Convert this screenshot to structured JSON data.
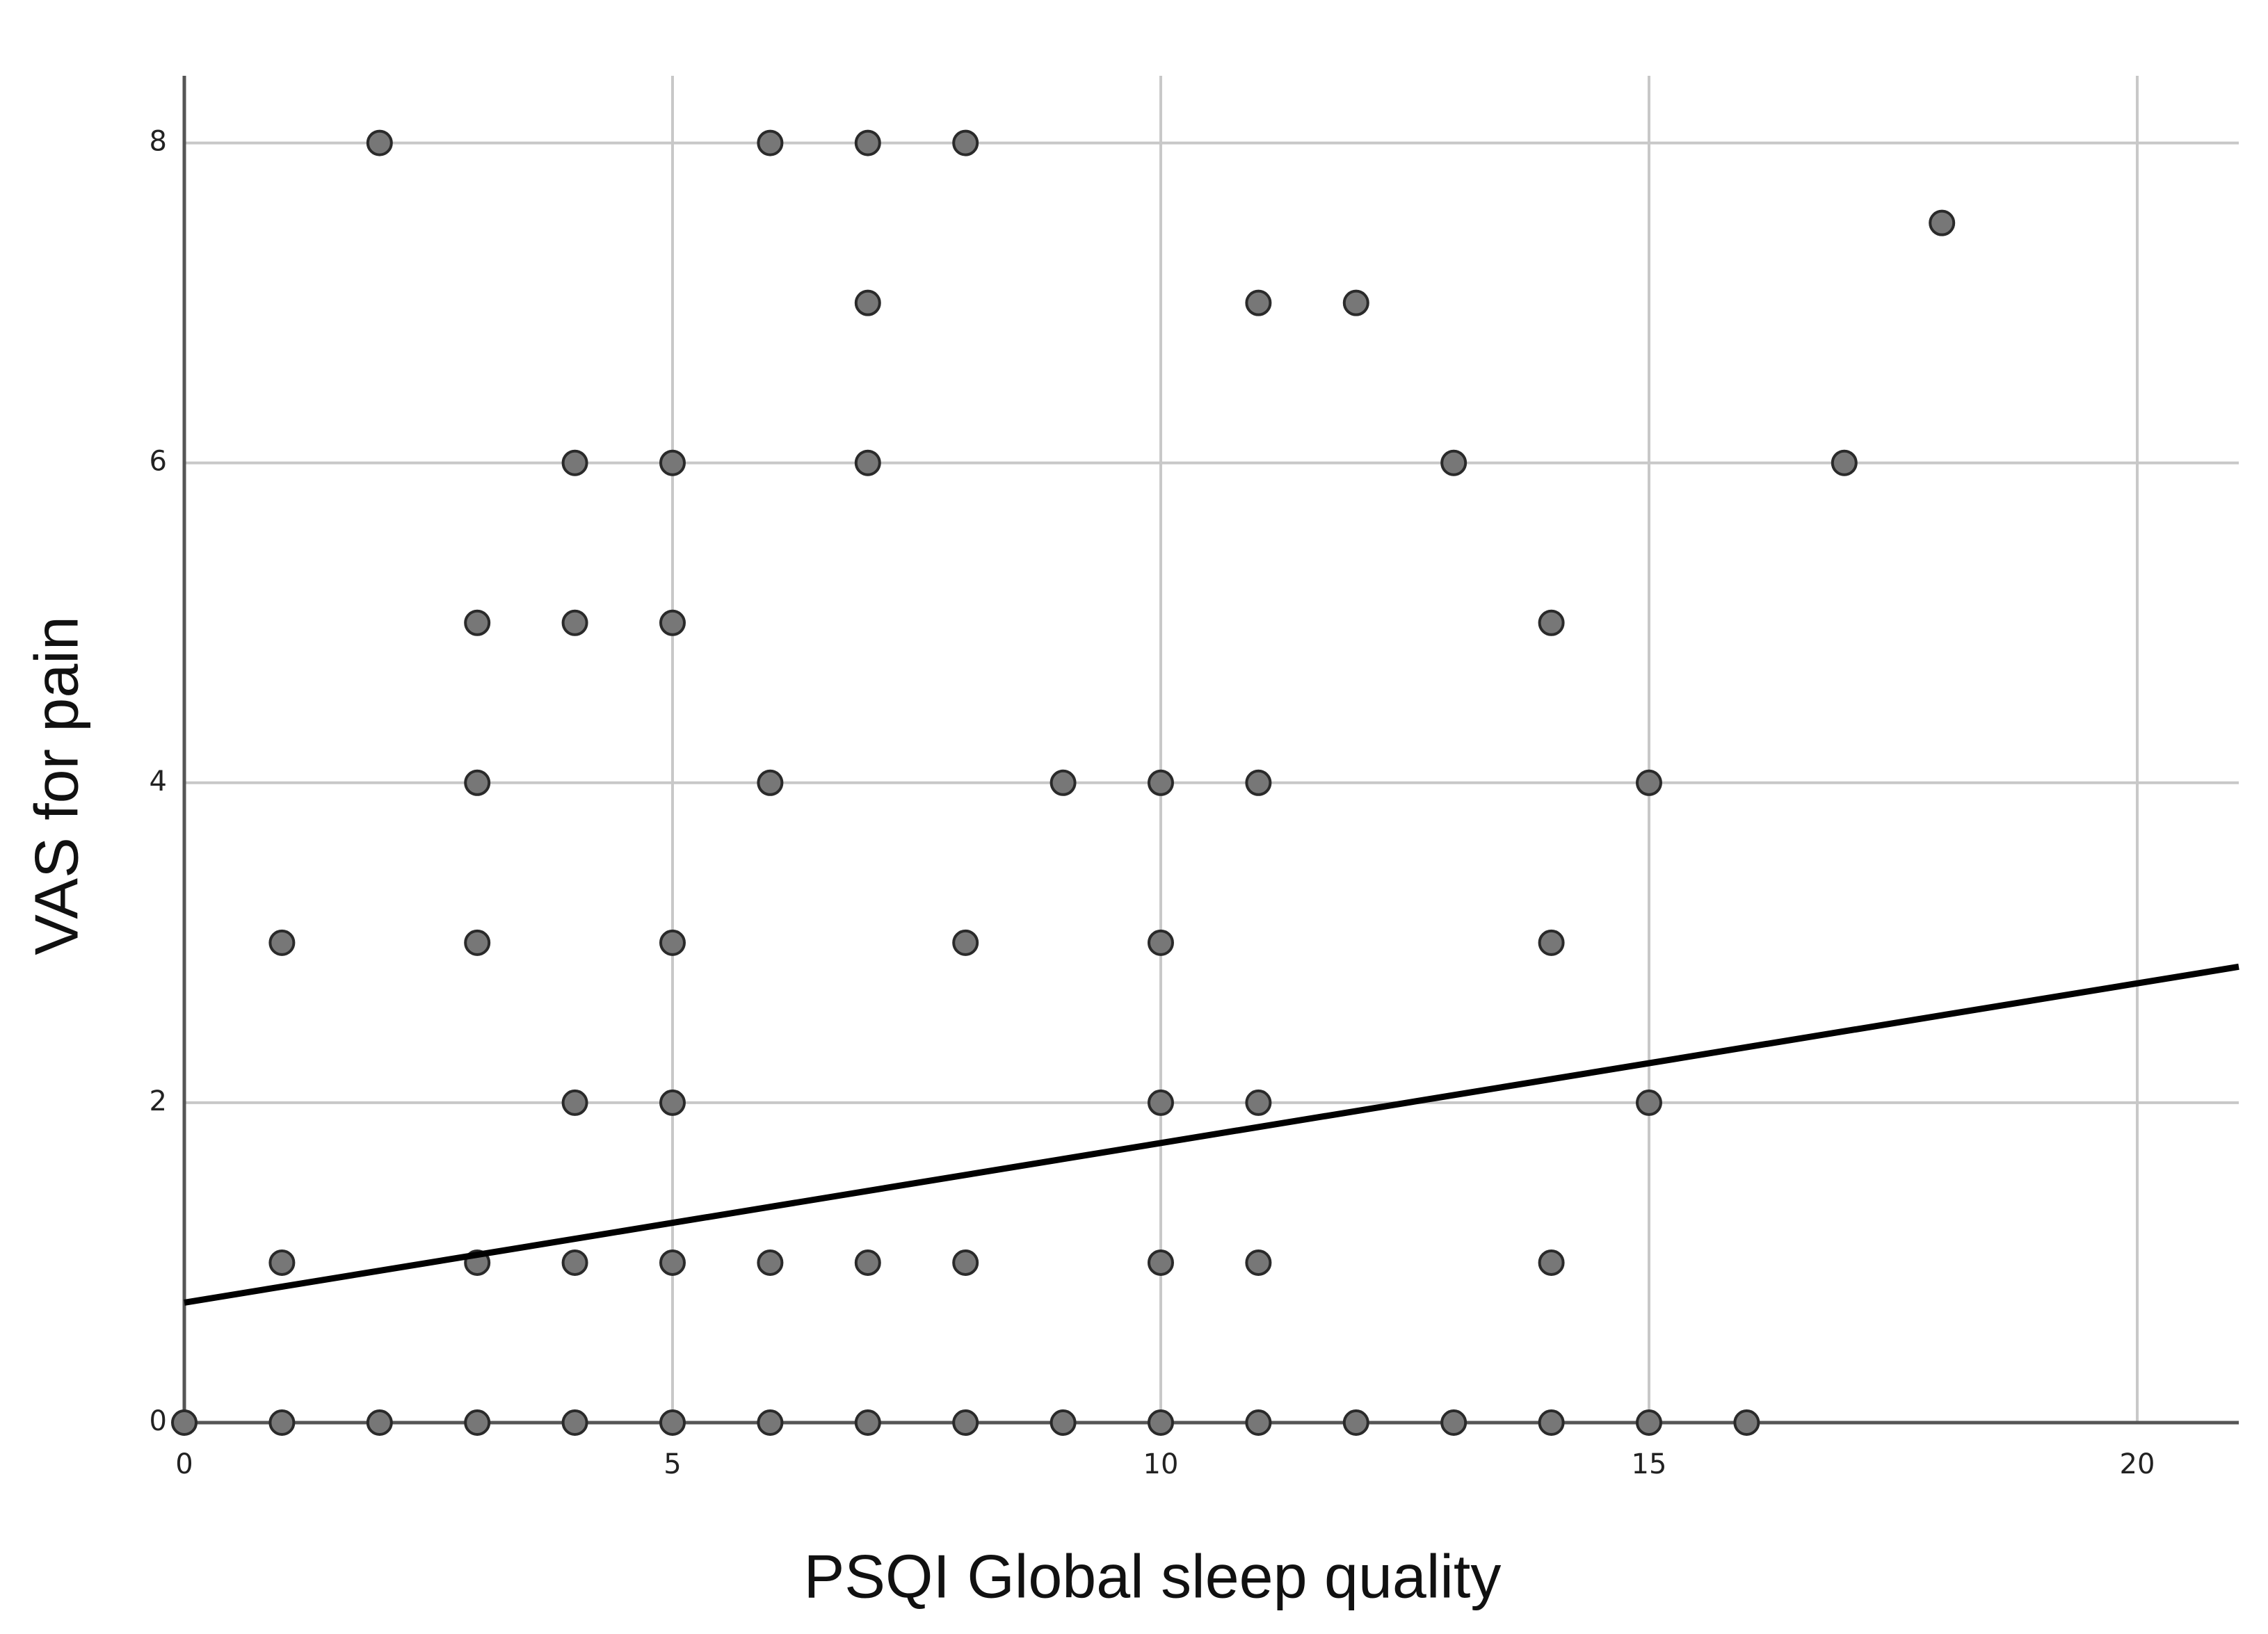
{
  "chart_data": {
    "type": "scatter",
    "x_label": "PSQI Global sleep quality",
    "y_label": "VAS for pain",
    "xlim": [
      0,
      21.04
    ],
    "ylim": [
      0,
      8.42
    ],
    "xticks": [
      0,
      5,
      10,
      15,
      20
    ],
    "yticks": [
      0,
      2,
      4,
      6,
      8
    ],
    "grid": true,
    "series": [
      {
        "color": "#777777",
        "x": [
          2,
          6,
          7,
          8,
          18,
          7,
          11,
          12,
          4,
          5,
          7,
          13,
          17,
          3,
          4,
          5,
          14,
          3,
          6,
          9,
          10,
          11,
          15,
          1,
          3,
          5,
          8,
          10,
          14,
          4,
          5,
          10,
          11,
          15,
          1,
          3,
          4,
          5,
          6,
          7,
          8,
          10,
          11,
          14,
          0,
          1,
          2,
          3,
          4,
          5,
          6,
          7,
          8,
          9,
          10,
          11,
          12,
          13,
          14,
          15,
          16
        ],
        "values": [
          8,
          8,
          8,
          8,
          7.5,
          7,
          7,
          7,
          6,
          6,
          6,
          6,
          6,
          5,
          5,
          5,
          5,
          4,
          4,
          4,
          4,
          4,
          4,
          3,
          3,
          3,
          3,
          3,
          3,
          2,
          2,
          2,
          2,
          2,
          1,
          1,
          1,
          1,
          1,
          1,
          1,
          1,
          1,
          1,
          0,
          0,
          0,
          0,
          0,
          0,
          0,
          0,
          0,
          0,
          0,
          0,
          0,
          0,
          0,
          0,
          0
        ]
      }
    ],
    "fit_line": {
      "color": "#000000",
      "x": [
        0,
        21.04
      ],
      "values": [
        0.75,
        2.85
      ]
    }
  }
}
